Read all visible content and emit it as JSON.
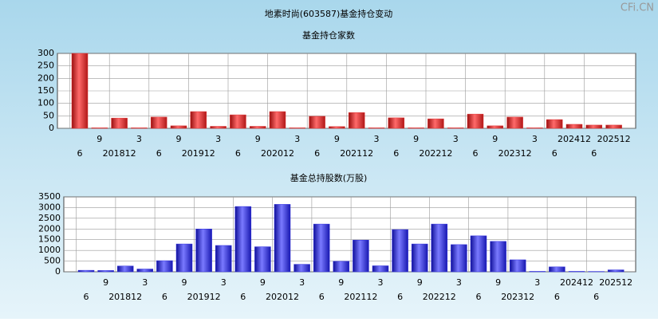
{
  "title": "地素时尚(603587)基金持仓变动",
  "watermark": "CFi.CN",
  "chart_data": [
    {
      "type": "bar",
      "title": "基金持仓家数",
      "color": "#e03030",
      "categories": [
        "6",
        "9",
        "201812",
        "3",
        "6",
        "9",
        "201912",
        "3",
        "6",
        "9",
        "202012",
        "3",
        "6",
        "9",
        "202112",
        "3",
        "6",
        "9",
        "202212",
        "3",
        "6",
        "9",
        "202312",
        "3",
        "6",
        "202412",
        "6",
        "202512"
      ],
      "values": [
        300,
        2,
        41,
        2,
        45,
        10,
        67,
        8,
        54,
        8,
        67,
        2,
        48,
        7,
        63,
        2,
        42,
        2,
        38,
        2,
        57,
        10,
        45,
        2,
        35,
        16,
        13,
        13
      ],
      "ylim": [
        0,
        300
      ],
      "yticks": [
        0,
        50,
        100,
        150,
        200,
        250,
        300
      ],
      "grid": true
    },
    {
      "type": "bar",
      "title": "基金总持股数(万股)",
      "color": "#3030e0",
      "categories": [
        "6",
        "9",
        "201812",
        "3",
        "6",
        "9",
        "201912",
        "3",
        "6",
        "9",
        "202012",
        "3",
        "6",
        "9",
        "202112",
        "3",
        "6",
        "9",
        "202212",
        "3",
        "6",
        "9",
        "202312",
        "3",
        "6",
        "202412",
        "6",
        "202512"
      ],
      "values": [
        70,
        60,
        270,
        130,
        520,
        1300,
        2000,
        1230,
        3050,
        1170,
        3150,
        350,
        2230,
        490,
        1480,
        280,
        1970,
        1300,
        2230,
        1270,
        1680,
        1420,
        560,
        20,
        230,
        20,
        15,
        90
      ],
      "ylim": [
        0,
        3500
      ],
      "yticks": [
        0,
        500,
        1000,
        1500,
        2000,
        2500,
        3000,
        3500
      ],
      "grid": true
    }
  ]
}
